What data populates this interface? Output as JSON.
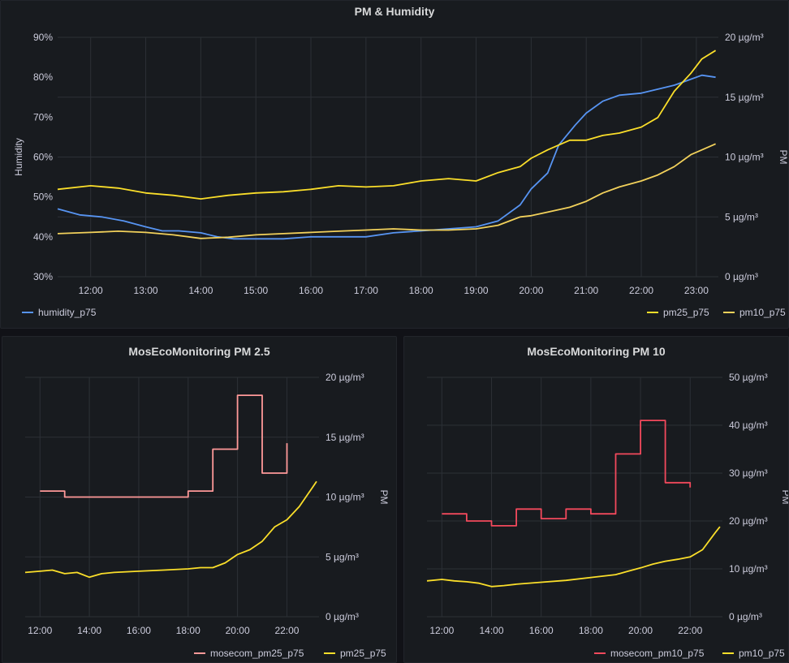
{
  "chart_data": [
    {
      "type": "line",
      "title": "PM & Humidity",
      "ylabel_left": "Humidity",
      "ylabel_right": "PM",
      "x_ticks": [
        "12:00",
        "13:00",
        "14:00",
        "15:00",
        "16:00",
        "17:00",
        "18:00",
        "19:00",
        "20:00",
        "21:00",
        "22:00",
        "23:00"
      ],
      "x_range_hours": [
        11.4,
        23.4
      ],
      "ylim_left": [
        30,
        90
      ],
      "left_ticks": [
        "30%",
        "40%",
        "50%",
        "60%",
        "70%",
        "80%",
        "90%"
      ],
      "ylim_right": [
        0,
        20
      ],
      "right_ticks": [
        "0 µg/m³",
        "5 µg/m³",
        "10 µg/m³",
        "15 µg/m³",
        "20 µg/m³"
      ],
      "legend_left": [
        "humidity_p75"
      ],
      "legend_right": [
        "pm25_p75",
        "pm10_p75"
      ],
      "series": [
        {
          "name": "humidity_p75",
          "color": "#5794f2",
          "axis": "left",
          "x": [
            11.4,
            11.8,
            12.2,
            12.6,
            13.0,
            13.3,
            13.6,
            14.0,
            14.3,
            14.6,
            15.0,
            15.5,
            16.0,
            16.5,
            17.0,
            17.5,
            18.0,
            18.5,
            19.0,
            19.4,
            19.8,
            20.0,
            20.3,
            20.5,
            20.8,
            21.0,
            21.3,
            21.6,
            22.0,
            22.3,
            22.6,
            22.9,
            23.1,
            23.35
          ],
          "y": [
            47,
            45.5,
            45,
            44,
            42.5,
            41.5,
            41.5,
            41,
            40,
            39.5,
            39.5,
            39.5,
            40,
            40,
            40,
            41,
            41.5,
            42,
            42.5,
            44,
            48,
            52,
            56,
            63,
            68,
            71,
            74,
            75.5,
            76,
            77,
            78,
            79.5,
            80.5,
            80
          ]
        },
        {
          "name": "pm25_p75",
          "color": "#fade2a",
          "axis": "right",
          "x": [
            11.4,
            12.0,
            12.5,
            13.0,
            13.5,
            14.0,
            14.5,
            15.0,
            15.5,
            16.0,
            16.5,
            17.0,
            17.5,
            18.0,
            18.5,
            19.0,
            19.4,
            19.8,
            20.0,
            20.3,
            20.7,
            21.0,
            21.3,
            21.6,
            22.0,
            22.3,
            22.6,
            22.9,
            23.1,
            23.35
          ],
          "y": [
            7.3,
            7.6,
            7.4,
            7.0,
            6.8,
            6.5,
            6.8,
            7.0,
            7.1,
            7.3,
            7.6,
            7.5,
            7.6,
            8.0,
            8.2,
            8.0,
            8.7,
            9.2,
            9.9,
            10.6,
            11.4,
            11.4,
            11.8,
            12.0,
            12.5,
            13.3,
            15.5,
            17.0,
            18.2,
            18.9
          ]
        },
        {
          "name": "pm10_p75",
          "color": "#f2d15b",
          "axis": "right",
          "x": [
            11.4,
            12.0,
            12.5,
            13.0,
            13.5,
            14.0,
            14.5,
            15.0,
            15.5,
            16.0,
            16.5,
            17.0,
            17.5,
            18.0,
            18.5,
            19.0,
            19.4,
            19.8,
            20.0,
            20.3,
            20.7,
            21.0,
            21.3,
            21.6,
            22.0,
            22.3,
            22.6,
            22.9,
            23.1,
            23.35
          ],
          "y": [
            3.6,
            3.7,
            3.8,
            3.7,
            3.5,
            3.2,
            3.3,
            3.5,
            3.6,
            3.7,
            3.8,
            3.9,
            4.0,
            3.9,
            3.9,
            4.0,
            4.3,
            5.0,
            5.1,
            5.4,
            5.8,
            6.3,
            7.0,
            7.5,
            8.0,
            8.5,
            9.2,
            10.2,
            10.6,
            11.1
          ]
        }
      ]
    },
    {
      "type": "line",
      "title": "MosEcoMonitoring PM 2.5",
      "ylabel_right": "PM",
      "x_ticks": [
        "12:00",
        "14:00",
        "16:00",
        "18:00",
        "20:00",
        "22:00"
      ],
      "x_range_hours": [
        11.4,
        23.3
      ],
      "ylim_right": [
        0,
        20
      ],
      "right_ticks": [
        "0 µg/m³",
        "5 µg/m³",
        "10 µg/m³",
        "15 µg/m³",
        "20 µg/m³"
      ],
      "legend": [
        "mosecom_pm25_p75",
        "pm25_p75"
      ],
      "series": [
        {
          "name": "mosecom_pm25_p75",
          "color": "#ff9999",
          "step": true,
          "x": [
            12,
            13,
            14,
            15,
            16,
            17,
            18,
            19,
            20,
            21,
            22
          ],
          "y": [
            10.5,
            10.0,
            10.0,
            10.0,
            10.0,
            10.0,
            10.5,
            14.0,
            18.5,
            12.0,
            14.5
          ]
        },
        {
          "name": "pm25_p75",
          "color": "#fade2a",
          "x": [
            11.4,
            12.0,
            12.5,
            13.0,
            13.5,
            14.0,
            14.5,
            15.0,
            16.0,
            17.0,
            18.0,
            18.5,
            19.0,
            19.5,
            20.0,
            20.5,
            21.0,
            21.5,
            22.0,
            22.5,
            23.0,
            23.2
          ],
          "y": [
            3.7,
            3.8,
            3.9,
            3.6,
            3.7,
            3.3,
            3.6,
            3.7,
            3.8,
            3.9,
            4.0,
            4.1,
            4.1,
            4.5,
            5.2,
            5.6,
            6.3,
            7.5,
            8.1,
            9.2,
            10.7,
            11.3
          ]
        }
      ]
    },
    {
      "type": "line",
      "title": "MosEcoMonitoring PM 10",
      "ylabel_right": "PM",
      "x_ticks": [
        "12:00",
        "14:00",
        "16:00",
        "18:00",
        "20:00",
        "22:00"
      ],
      "x_range_hours": [
        11.4,
        23.3
      ],
      "ylim_right": [
        0,
        50
      ],
      "right_ticks": [
        "0 µg/m³",
        "10 µg/m³",
        "20 µg/m³",
        "30 µg/m³",
        "40 µg/m³",
        "50 µg/m³"
      ],
      "legend": [
        "mosecom_pm10_p75",
        "pm10_p75"
      ],
      "series": [
        {
          "name": "mosecom_pm10_p75",
          "color": "#f2495c",
          "step": true,
          "x": [
            12,
            13,
            14,
            15,
            16,
            17,
            18,
            19,
            20,
            21,
            22
          ],
          "y": [
            21.5,
            20.0,
            19.0,
            22.5,
            20.5,
            22.5,
            21.5,
            34.0,
            41.0,
            28.0,
            27.0
          ]
        },
        {
          "name": "pm10_p75",
          "color": "#fade2a",
          "x": [
            11.4,
            12.0,
            12.5,
            13.0,
            13.5,
            14.0,
            14.5,
            15.0,
            16.0,
            17.0,
            18.0,
            18.5,
            19.0,
            19.5,
            20.0,
            20.5,
            21.0,
            21.5,
            22.0,
            22.5,
            23.0,
            23.2
          ],
          "y": [
            7.5,
            7.8,
            7.5,
            7.3,
            7.0,
            6.3,
            6.5,
            6.8,
            7.2,
            7.6,
            8.2,
            8.5,
            8.8,
            9.5,
            10.2,
            11.0,
            11.6,
            12.0,
            12.5,
            14.0,
            17.5,
            18.8
          ]
        }
      ]
    }
  ]
}
